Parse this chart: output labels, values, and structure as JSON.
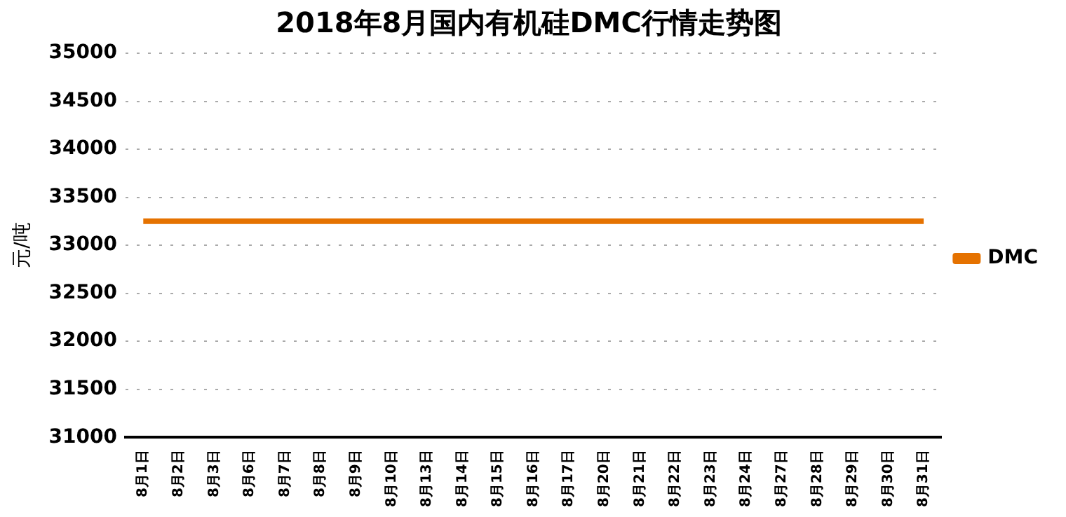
{
  "chart_data": {
    "type": "line",
    "title": "2018年8月国内有机硅DMC行情走势图",
    "ylabel": "元/吨",
    "categories": [
      "8月1日",
      "8月2日",
      "8月3日",
      "8月6日",
      "8月7日",
      "8月8日",
      "8月9日",
      "8月10日",
      "8月13日",
      "8月14日",
      "8月15日",
      "8月16日",
      "8月17日",
      "8月20日",
      "8月21日",
      "8月22日",
      "8月23日",
      "8月24日",
      "8月27日",
      "8月28日",
      "8月29日",
      "8月30日",
      "8月31日"
    ],
    "series": [
      {
        "name": "DMC",
        "color": "#e57200",
        "values": [
          33250,
          33250,
          33250,
          33250,
          33250,
          33250,
          33250,
          33250,
          33250,
          33250,
          33250,
          33250,
          33250,
          33250,
          33250,
          33250,
          33250,
          33250,
          33250,
          33250,
          33250,
          33250,
          33250
        ]
      }
    ],
    "ylim": [
      31000,
      35000
    ],
    "yticks": [
      31000,
      31500,
      32000,
      32500,
      33000,
      33500,
      34000,
      34500,
      35000
    ],
    "grid": "y",
    "legend": "right",
    "marker": "none",
    "line_style": "solid"
  }
}
